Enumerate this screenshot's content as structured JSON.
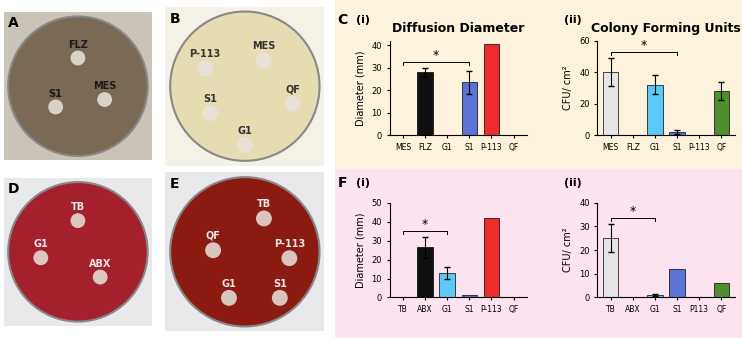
{
  "images": [
    {
      "panel": "A",
      "labels": [
        "FLZ",
        "S1",
        "MES"
      ]
    },
    {
      "panel": "B",
      "labels": [
        "P-113",
        "MES",
        "QF",
        "S1",
        "G1"
      ]
    },
    {
      "panel": "D",
      "labels": [
        "TB",
        "G1",
        "ABX"
      ]
    },
    {
      "panel": "E",
      "labels": [
        "TB",
        "QF",
        "P-113",
        "G1",
        "S1"
      ]
    }
  ],
  "chart_data": [
    {
      "type": "bar",
      "panel": "C",
      "subpanel": "(i)",
      "title": "Diffusion Diameter",
      "y_label": "Diameter (mm)",
      "categories": [
        "MES",
        "FLZ",
        "G1",
        "S1",
        "P-113",
        "QF"
      ],
      "values": [
        0,
        28,
        0,
        23.5,
        40.5,
        0
      ],
      "errors": [
        0,
        2,
        0,
        5,
        0,
        0
      ],
      "colors": [
        "#ffffff",
        "#111111",
        "#ffffff",
        "#5b74d6",
        "#ee2c2c",
        "#ffffff"
      ],
      "ylim": [
        0,
        42
      ],
      "yticks": [
        0,
        10,
        20,
        30,
        40
      ],
      "significance": {
        "from": "MES",
        "to": "S1",
        "label": "*"
      }
    },
    {
      "type": "bar",
      "subpanel": "(ii)",
      "title": "Colony Forming Units",
      "y_label": "CFU/ cm²",
      "categories": [
        "MES",
        "FLZ",
        "G1",
        "S1",
        "P-113",
        "QF"
      ],
      "values": [
        40,
        0,
        32,
        2,
        0,
        28
      ],
      "errors": [
        9,
        0,
        6,
        1.5,
        0,
        6
      ],
      "colors": [
        "#e6e6e6",
        "#ffffff",
        "#5bc8f5",
        "#5b74d6",
        "#ffffff",
        "#4f8f2f"
      ],
      "ylim": [
        0,
        60
      ],
      "yticks": [
        0,
        20,
        40,
        60
      ],
      "significance": {
        "from": "MES",
        "to": "S1",
        "label": "*"
      }
    },
    {
      "type": "bar",
      "panel": "F",
      "subpanel": "(i)",
      "y_label": "Diameter (mm)",
      "categories": [
        "TB",
        "ABX",
        "G1",
        "S1",
        "P-113",
        "QF"
      ],
      "values": [
        0,
        26.5,
        13,
        1.5,
        42,
        0
      ],
      "errors": [
        0,
        5.5,
        3,
        0,
        0,
        0
      ],
      "colors": [
        "#ffffff",
        "#111111",
        "#5bc8f5",
        "#5b74d6",
        "#ee2c2c",
        "#ffffff"
      ],
      "ylim": [
        0,
        50
      ],
      "yticks": [
        0,
        10,
        20,
        30,
        40,
        50
      ],
      "significance": {
        "from": "TB",
        "to": "G1",
        "label": "*"
      }
    },
    {
      "type": "bar",
      "subpanel": "(ii)",
      "y_label": "CFU/ cm²",
      "categories": [
        "TB",
        "ABX",
        "G1",
        "S1",
        "P113",
        "QF"
      ],
      "values": [
        25,
        0,
        1,
        12,
        0,
        6
      ],
      "errors": [
        6,
        0,
        0.3,
        0,
        0,
        0
      ],
      "colors": [
        "#e6e6e6",
        "#ffffff",
        "#5bc8f5",
        "#5b74d6",
        "#ffffff",
        "#4f8f2f"
      ],
      "ylim": [
        0,
        40
      ],
      "yticks": [
        0,
        10,
        20,
        30,
        40
      ],
      "significance": {
        "from": "TB",
        "to": "G1",
        "label": "*"
      }
    }
  ]
}
